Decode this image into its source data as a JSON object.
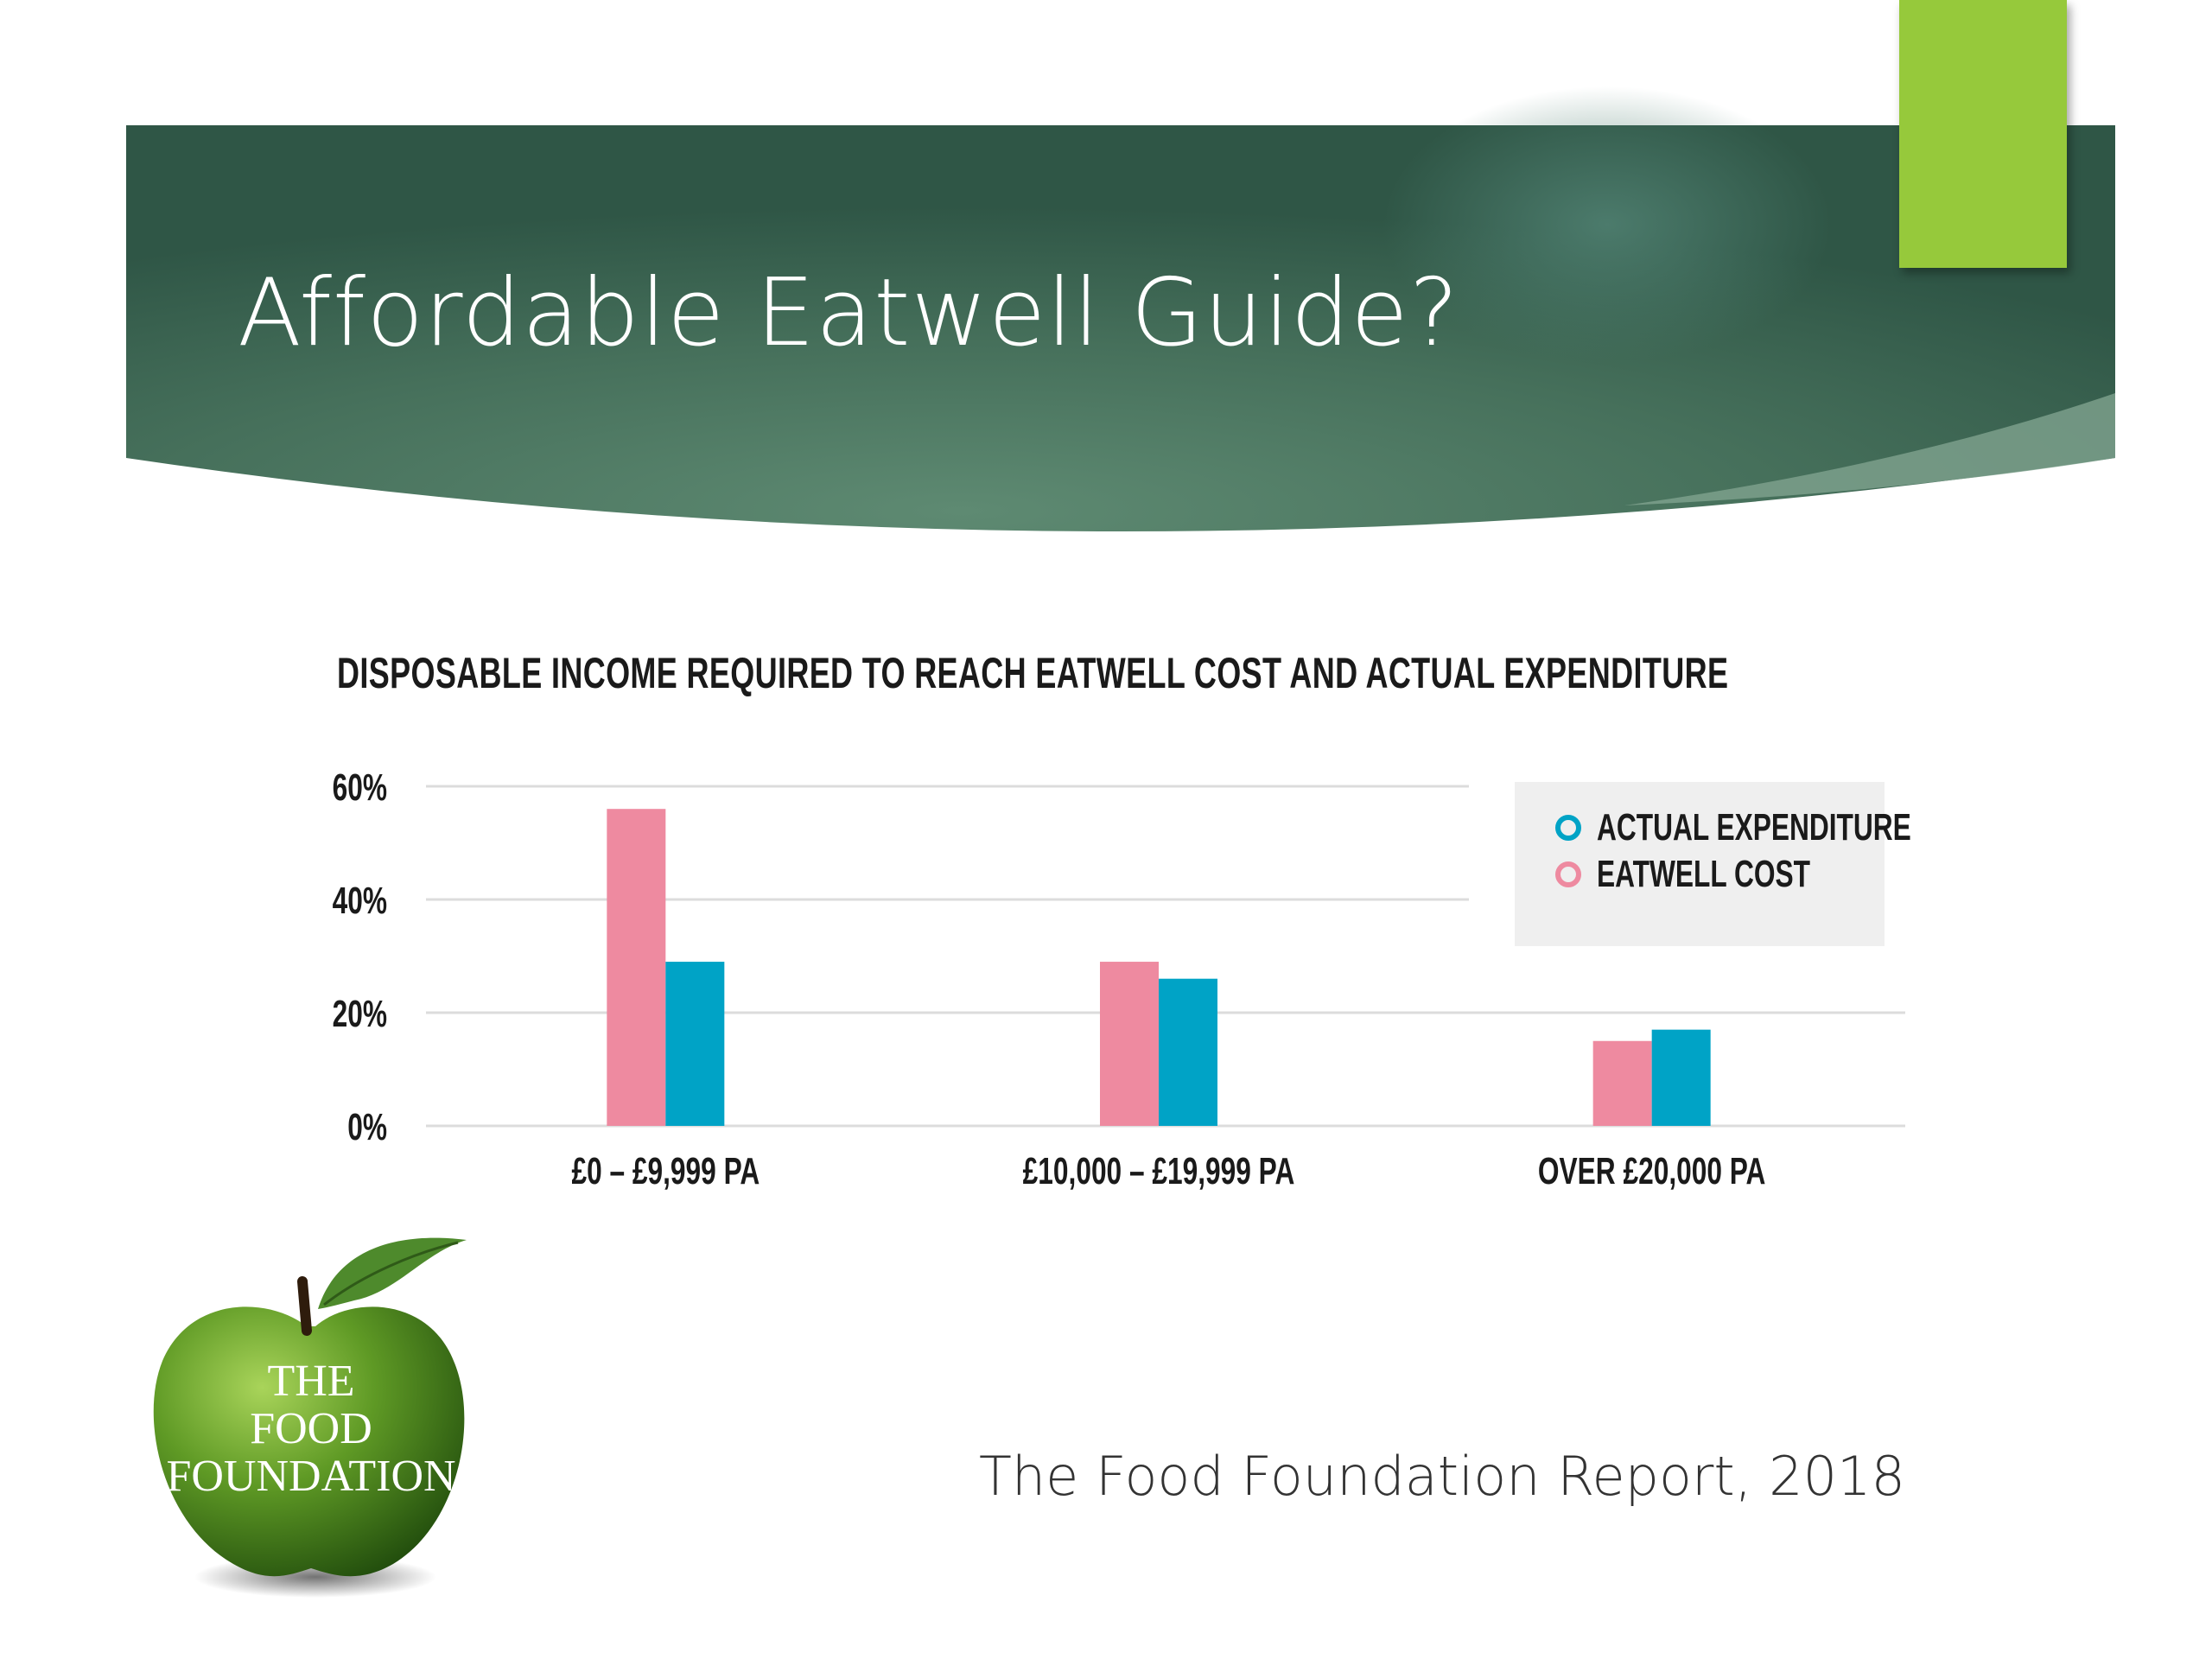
{
  "slide": {
    "title": "Affordable Eatwell Guide?",
    "source": "The Food Foundation Report, 2018"
  },
  "logo": {
    "line1": "THE",
    "line2": "FOOD",
    "line3": "FOUNDATION"
  },
  "colors": {
    "banner_dark": "#2f5646",
    "banner_light": "#5e8a72",
    "accent_green": "#96c93b",
    "actual_expenditure": "#00a3c6",
    "eatwell_cost": "#ee8aa0",
    "legend_bg": "#efefef"
  },
  "chart_data": {
    "type": "bar",
    "title": "DISPOSABLE INCOME REQUIRED TO REACH EATWELL COST AND ACTUAL EXPENDITURE",
    "categories": [
      "£0 – £9,999 PA",
      "£10,000 – £19,999 PA",
      "OVER £20,000 PA"
    ],
    "series": [
      {
        "name": "EATWELL COST",
        "color": "#ee8aa0",
        "values": [
          56,
          29,
          15
        ]
      },
      {
        "name": "ACTUAL EXPENDITURE",
        "color": "#00a3c6",
        "values": [
          29,
          26,
          17
        ]
      }
    ],
    "legend_order": [
      "ACTUAL EXPENDITURE",
      "EATWELL COST"
    ],
    "yticks": [
      "0%",
      "20%",
      "40%",
      "60%"
    ],
    "ytick_values": [
      0,
      20,
      40,
      60
    ],
    "ylim": [
      0,
      60
    ],
    "grid": true,
    "legend_position": "top-right"
  }
}
